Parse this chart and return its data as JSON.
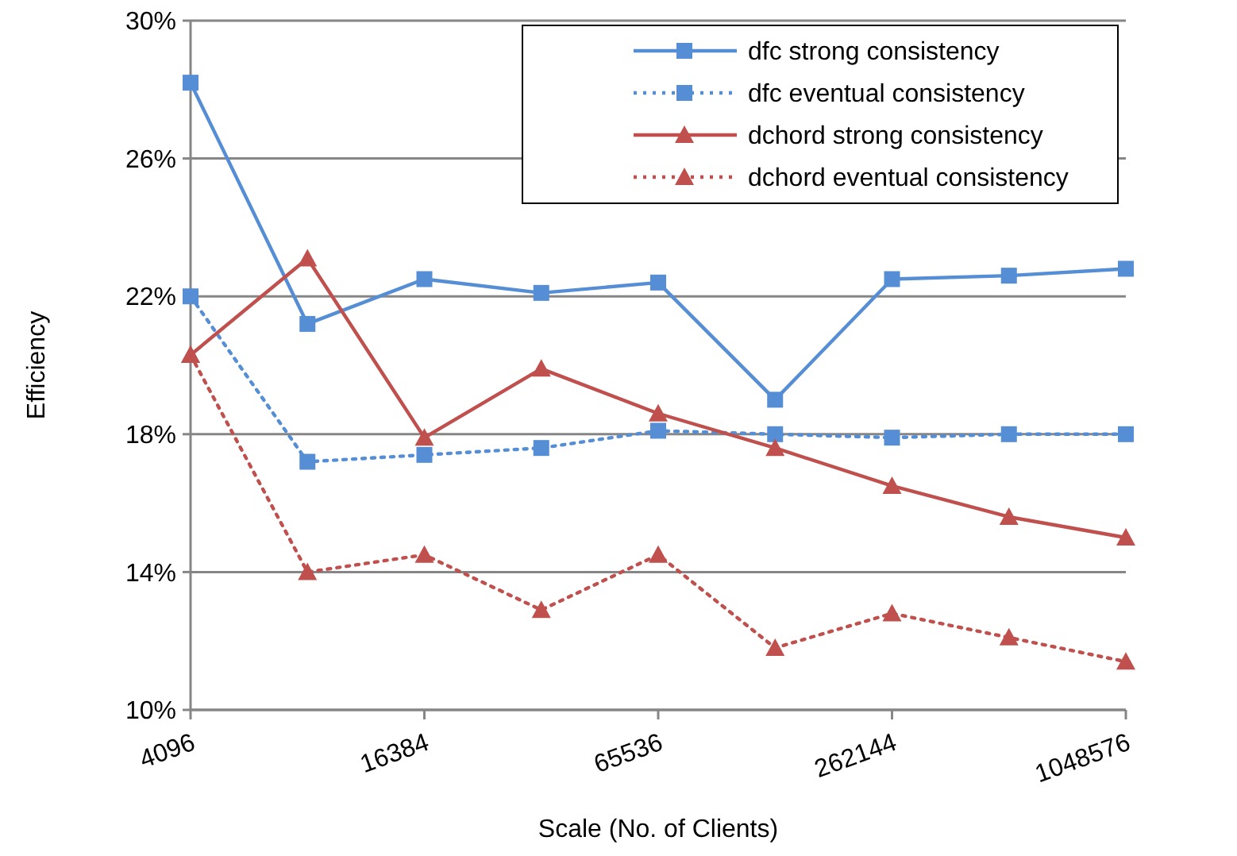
{
  "chart_data": {
    "type": "line",
    "xlabel": "Scale (No. of Clients)",
    "ylabel": "Efficiency",
    "log": "x",
    "x": [
      4096,
      8192,
      16384,
      32768,
      65536,
      131072,
      262144,
      524288,
      1048576
    ],
    "xlim": [
      4096,
      1048576
    ],
    "xticks": [
      4096,
      16384,
      65536,
      262144,
      1048576
    ],
    "ylim": [
      10,
      30
    ],
    "yticks": [
      {
        "value": 10,
        "label": "10%"
      },
      {
        "value": 14,
        "label": "14%"
      },
      {
        "value": 18,
        "label": "18%"
      },
      {
        "value": 22,
        "label": "22%"
      },
      {
        "value": 26,
        "label": "26%"
      },
      {
        "value": 30,
        "label": "30%"
      }
    ],
    "grid": "y",
    "legend": "top right",
    "series": [
      {
        "name": "dfc strong consistency",
        "color": "#558ed5",
        "marker": "square",
        "line_style": "solid",
        "values": [
          28.2,
          21.2,
          22.5,
          22.1,
          22.4,
          19.0,
          22.5,
          22.6,
          22.8
        ]
      },
      {
        "name": "dfc eventual consistency",
        "color": "#558ed5",
        "marker": "square",
        "line_style": "dotted",
        "values": [
          22.0,
          17.2,
          17.4,
          17.6,
          18.1,
          18.0,
          17.9,
          18.0,
          18.0
        ]
      },
      {
        "name": "dchord strong consistency",
        "color": "#c0504d",
        "marker": "triangle",
        "line_style": "solid",
        "values": [
          20.3,
          23.1,
          17.9,
          19.9,
          18.6,
          17.6,
          16.5,
          15.6,
          15.0
        ]
      },
      {
        "name": "dchord eventual consistency",
        "color": "#c0504d",
        "marker": "triangle",
        "line_style": "dotted",
        "values": [
          20.3,
          14.0,
          14.5,
          12.9,
          14.5,
          11.8,
          12.8,
          12.1,
          11.4
        ]
      }
    ]
  }
}
